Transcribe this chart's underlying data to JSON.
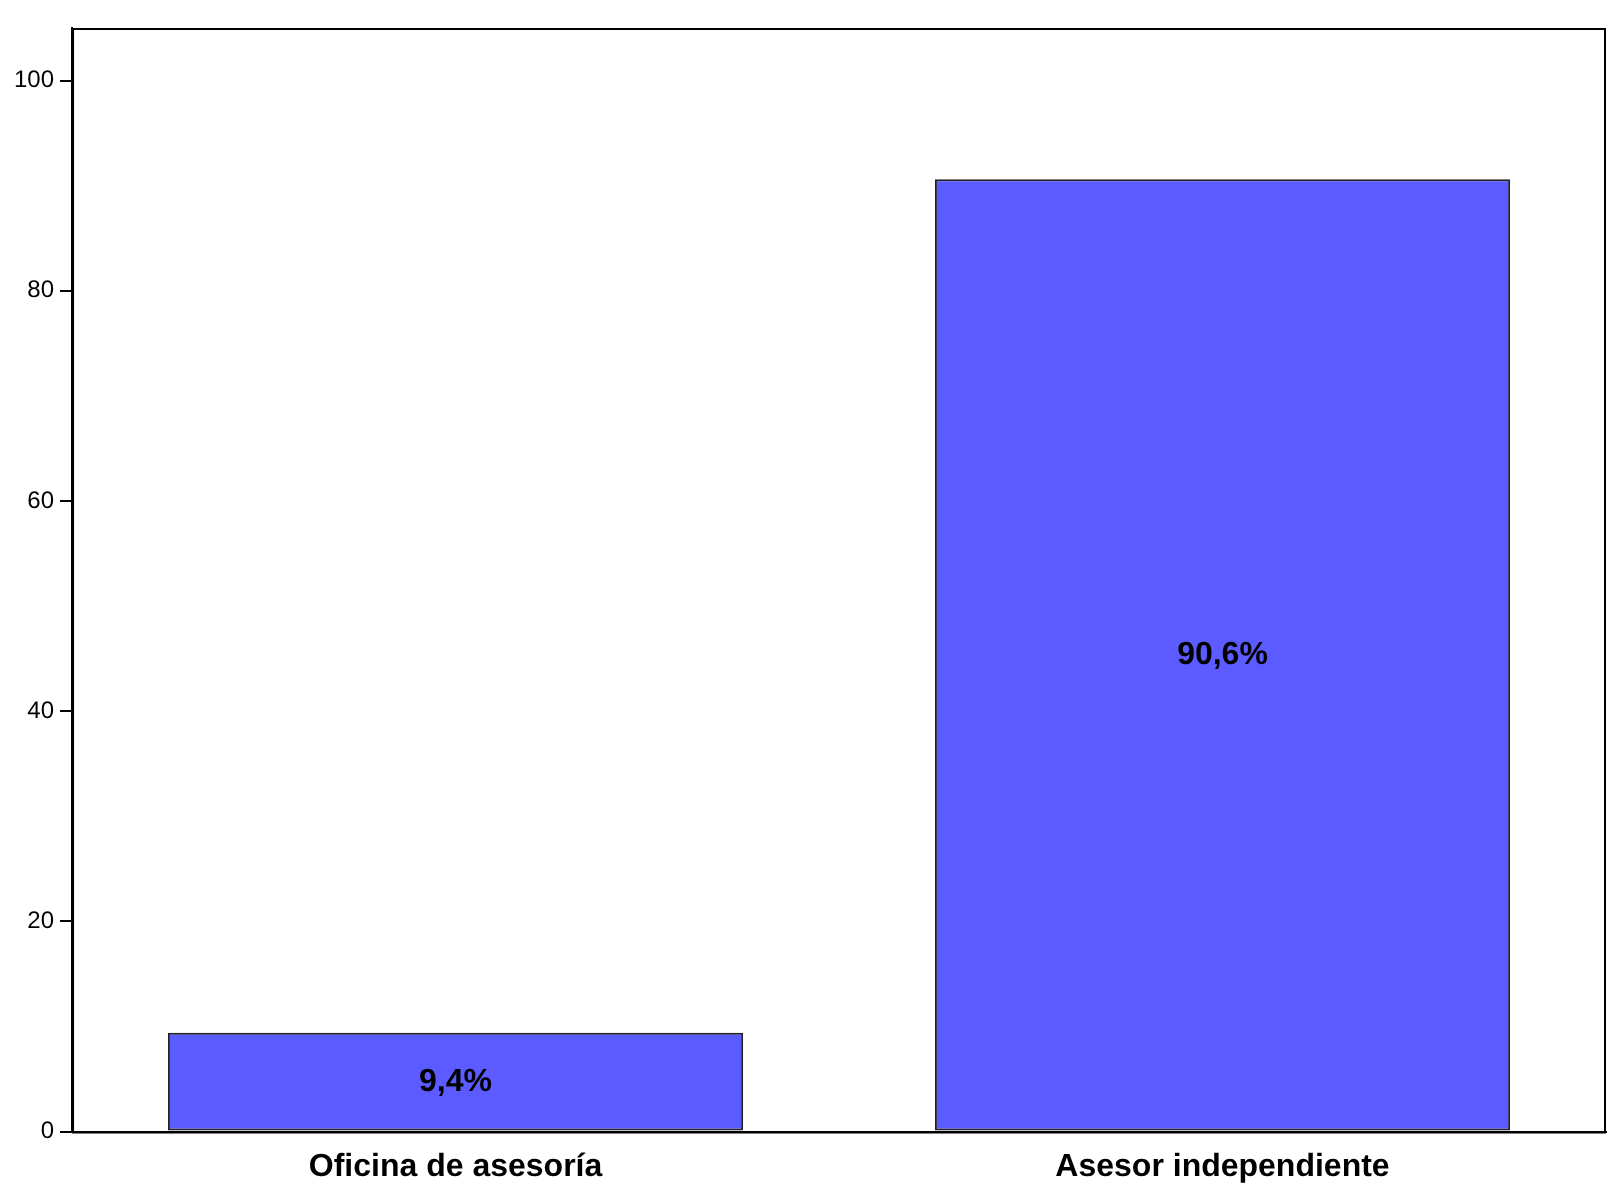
{
  "chart_data": {
    "type": "bar",
    "categories": [
      "Oficina de asesoría",
      "Asesor independiente"
    ],
    "values": [
      9.4,
      90.6
    ],
    "value_labels": [
      "9,4%",
      "90,6%"
    ],
    "color": "#5b5bff",
    "ylim": [
      0,
      105
    ],
    "yticks": [
      0,
      20,
      40,
      60,
      80,
      100
    ],
    "grid": false,
    "legend": false
  }
}
